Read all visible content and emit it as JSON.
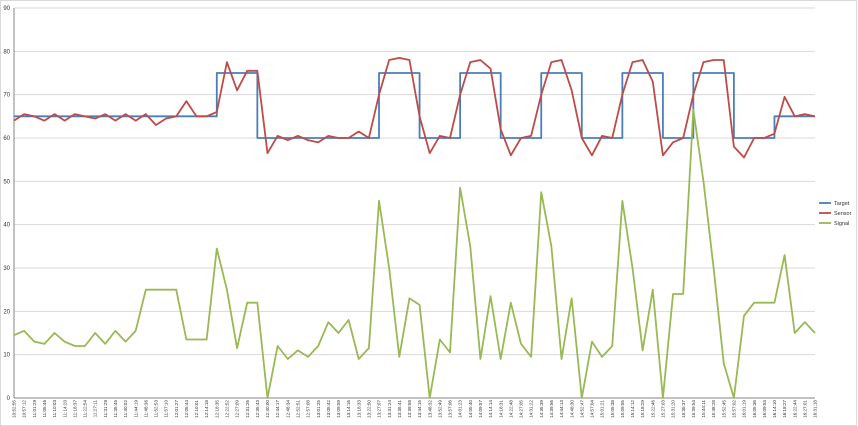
{
  "chart_data": {
    "type": "line",
    "categories": [
      "10:52:55",
      "10:57:12",
      "11:01:29",
      "11:05:46",
      "11:10:03",
      "11:14:20",
      "11:18:37",
      "11:22:54",
      "11:27:11",
      "11:31:28",
      "11:35:45",
      "11:40:02",
      "11:44:19",
      "11:48:36",
      "11:52:53",
      "11:57:10",
      "12:01:27",
      "12:05:44",
      "12:10:01",
      "12:14:18",
      "12:18:35",
      "12:22:52",
      "12:27:09",
      "12:31:26",
      "12:35:43",
      "12:40:00",
      "12:44:17",
      "12:48:34",
      "12:52:51",
      "12:57:08",
      "13:01:25",
      "13:05:42",
      "13:09:59",
      "13:14:16",
      "13:18:33",
      "13:22:50",
      "13:27:07",
      "13:31:24",
      "13:35:41",
      "13:39:58",
      "13:44:15",
      "13:48:32",
      "13:52:49",
      "13:57:06",
      "14:01:23",
      "14:05:40",
      "14:09:57",
      "14:14:14",
      "14:18:31",
      "14:22:48",
      "14:27:05",
      "14:31:22",
      "14:35:39",
      "14:39:56",
      "14:44:13",
      "14:48:30",
      "14:52:47",
      "14:57:04",
      "15:01:21",
      "15:05:38",
      "15:09:55",
      "15:14:12",
      "15:18:29",
      "15:22:46",
      "15:27:03",
      "15:31:20",
      "15:35:37",
      "15:39:54",
      "15:44:11",
      "15:48:28",
      "15:52:45",
      "15:57:02",
      "16:01:19",
      "16:05:36",
      "16:09:53",
      "16:14:10",
      "16:18:27",
      "16:22:44",
      "16:27:01",
      "16:31:18"
    ],
    "series": [
      {
        "name": "Target",
        "color": "#4a7ebb",
        "drawstyle": "steps",
        "values": [
          65,
          65,
          65,
          65,
          65,
          65,
          65,
          65,
          65,
          65,
          65,
          65,
          65,
          65,
          65,
          65,
          65,
          65,
          65,
          65,
          75,
          75,
          75,
          75,
          60,
          60,
          60,
          60,
          60,
          60,
          60,
          60,
          60,
          60,
          60,
          60,
          75,
          75,
          75,
          75,
          60,
          60,
          60,
          60,
          75,
          75,
          75,
          75,
          60,
          60,
          60,
          60,
          75,
          75,
          75,
          75,
          60,
          60,
          60,
          60,
          75,
          75,
          75,
          75,
          60,
          60,
          60,
          75,
          75,
          75,
          75,
          60,
          60,
          60,
          60,
          65,
          65,
          65,
          65,
          65
        ]
      },
      {
        "name": "Sensor",
        "color": "#be4b48",
        "values": [
          64,
          65.5,
          65,
          64,
          65.5,
          64,
          65.5,
          65,
          64.5,
          65.5,
          64,
          65.5,
          64,
          65.5,
          63,
          64.5,
          65,
          68.5,
          65,
          65,
          66,
          77.5,
          71,
          75.5,
          75.5,
          56.5,
          60.5,
          59.5,
          60.5,
          59.5,
          59,
          60.5,
          60,
          60,
          61.5,
          60,
          70,
          78,
          78.5,
          78,
          65,
          56.5,
          60.5,
          60,
          70,
          77.5,
          78,
          76,
          62,
          56,
          60,
          60.5,
          70,
          77.5,
          78,
          71,
          60,
          56,
          60.5,
          60,
          70,
          77.5,
          78,
          73,
          56,
          59,
          60,
          70,
          77.5,
          78,
          78,
          58,
          55.5,
          60,
          60,
          61,
          69.5,
          65,
          65.5,
          65
        ]
      },
      {
        "name": "Signal",
        "color": "#98b954",
        "values": [
          14.5,
          15.5,
          13,
          12.5,
          15,
          13,
          12,
          12,
          15,
          12.5,
          15.5,
          13,
          15.5,
          25,
          25,
          25,
          25,
          13.5,
          13.5,
          13.5,
          34.5,
          25,
          11.5,
          22,
          22,
          0,
          12,
          9,
          11,
          9.5,
          12,
          17.5,
          15,
          18,
          9,
          11.5,
          45.5,
          30,
          9.5,
          23,
          21.5,
          0,
          13.5,
          10.5,
          48.5,
          35,
          9,
          23.5,
          9,
          22,
          12.5,
          9.5,
          47.5,
          35,
          9,
          23,
          0,
          13,
          9.5,
          12,
          45.5,
          30,
          11,
          25,
          0,
          24,
          24,
          66.5,
          50,
          30,
          8,
          0,
          19,
          22,
          22,
          22,
          33,
          15,
          17.5,
          15
        ]
      }
    ],
    "ylim": [
      0,
      90
    ],
    "yticks": [
      0,
      10,
      20,
      30,
      40,
      50,
      60,
      70,
      80,
      90
    ],
    "grid": true,
    "legend": "right"
  }
}
